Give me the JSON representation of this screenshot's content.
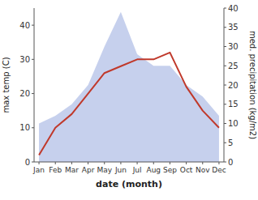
{
  "chart_data": {
    "type": "line",
    "xlabel": "date (month)",
    "ylabel": "max temp (C)",
    "y2label": "med. precipitation (kg/m2)",
    "categories": [
      "Jan",
      "Feb",
      "Mar",
      "Apr",
      "May",
      "Jun",
      "Jul",
      "Aug",
      "Sep",
      "Oct",
      "Nov",
      "Dec"
    ],
    "series": [
      {
        "type": "area",
        "axis": "y2",
        "color": "#b8c4e8",
        "values": [
          10,
          12,
          15,
          20,
          30,
          39,
          28,
          25,
          25,
          20,
          17,
          12
        ]
      },
      {
        "type": "line",
        "color": "#c0392b",
        "values": [
          2,
          10,
          14,
          20,
          26,
          28,
          30,
          30,
          32,
          22,
          15,
          10
        ]
      }
    ],
    "ylim": [
      0,
      45
    ],
    "yticks": [
      0,
      10,
      20,
      30,
      40
    ],
    "y2lim": [
      0,
      40
    ],
    "y2ticks": [
      0,
      5,
      10,
      15,
      20,
      25,
      30,
      35,
      40
    ],
    "grid": false
  }
}
